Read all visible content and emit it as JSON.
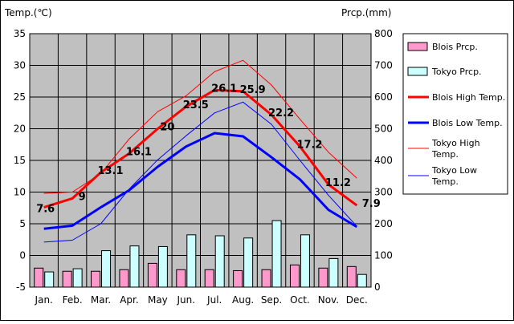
{
  "chart_data": {
    "type": "bar+line",
    "y_left_label": "Temp.(℃)",
    "y_right_label": "Prcp.(mm)",
    "y_left_range": [
      -5,
      35
    ],
    "y_left_ticks": [
      "35",
      "30",
      "25",
      "20",
      "15",
      "10",
      "5",
      "0",
      "-5"
    ],
    "y_right_range": [
      0,
      800
    ],
    "y_right_ticks": [
      "800",
      "700",
      "600",
      "500",
      "400",
      "300",
      "200",
      "100",
      "0"
    ],
    "categories": [
      "Jan.",
      "Feb.",
      "Mar.",
      "Apr.",
      "May",
      "Jun.",
      "Jul.",
      "Aug.",
      "Sep.",
      "Oct.",
      "Nov.",
      "Dec."
    ],
    "grid": true,
    "legend_placement": "right",
    "bars": [
      {
        "name": "Blois Prcp.",
        "color": "#ff99cc",
        "values": [
          60,
          50,
          50,
          55,
          75,
          55,
          55,
          52,
          55,
          70,
          60,
          65
        ]
      },
      {
        "name": "Tokyo Prcp.",
        "color": "#ccffff",
        "values": [
          48,
          58,
          115,
          130,
          128,
          165,
          162,
          155,
          210,
          165,
          90,
          40
        ]
      }
    ],
    "lines": [
      {
        "name": "Blois High Temp.",
        "color": "#ff0000",
        "width": 3,
        "values": [
          7.6,
          9,
          13.1,
          16.1,
          20,
          23.5,
          26.1,
          25.9,
          22.2,
          17.2,
          11.2,
          7.9
        ],
        "labels": [
          "7.6",
          "9",
          "13.1",
          "16.1",
          "20",
          "23.5",
          "26.1",
          "25.9",
          "22.2",
          "17.2",
          "11.2",
          "7.9"
        ]
      },
      {
        "name": "Blois Low Temp.",
        "color": "#0000ff",
        "width": 3,
        "values": [
          4.2,
          4.7,
          7.6,
          10.3,
          14,
          17.2,
          19.3,
          18.8,
          15.5,
          12,
          7.2,
          4.5
        ]
      },
      {
        "name": "Tokyo High Temp.",
        "color": "#ff0000",
        "width": 1,
        "values": [
          9.8,
          10,
          12.9,
          18.4,
          22.7,
          25.2,
          29,
          30.8,
          26.9,
          21.5,
          16.3,
          12.2
        ]
      },
      {
        "name": "Tokyo Low Temp.",
        "color": "#0000ff",
        "width": 1,
        "values": [
          2.1,
          2.4,
          5,
          10.5,
          15.1,
          18.9,
          22.5,
          24.2,
          20.7,
          15,
          9.5,
          4.6
        ]
      }
    ],
    "legend": [
      "Blois Prcp.",
      "Tokyo Prcp.",
      "Blois High Temp.",
      "Blois Low Temp.",
      "Tokyo High Temp.",
      "Tokyo Low Temp."
    ]
  }
}
